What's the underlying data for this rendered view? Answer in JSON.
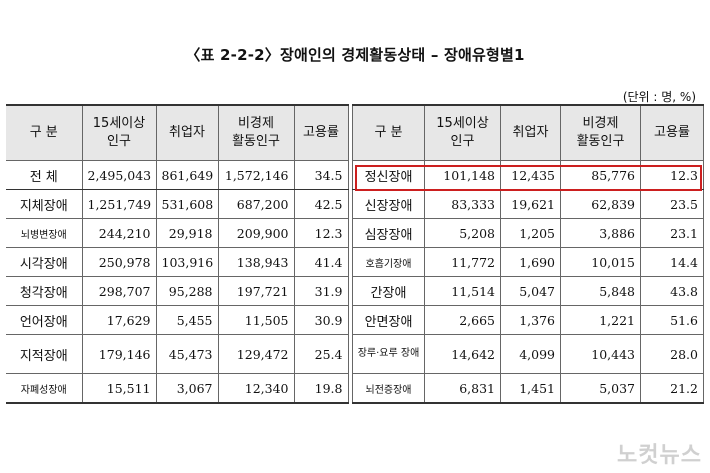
{
  "title": "〈표 2-2-2〉장애인의 경제활동상태 – 장애유형별1",
  "unit": "(단위 : 명, %)",
  "headers": {
    "category": "구 분",
    "pop15_line1": "15세이상",
    "pop15_line2": "인구",
    "employed": "취업자",
    "inactive_line1": "비경제",
    "inactive_line2": "활동인구",
    "rate": "고용률"
  },
  "left_rows": [
    {
      "label": "전 체",
      "pop15": "2,495,043",
      "employed": "861,649",
      "inactive": "1,572,146",
      "rate": "34.5"
    },
    {
      "label": "지체장애",
      "pop15": "1,251,749",
      "employed": "531,608",
      "inactive": "687,200",
      "rate": "42.5"
    },
    {
      "label": "뇌병변장애",
      "pop15": "244,210",
      "employed": "29,918",
      "inactive": "209,900",
      "rate": "12.3"
    },
    {
      "label": "시각장애",
      "pop15": "250,978",
      "employed": "103,916",
      "inactive": "138,943",
      "rate": "41.4"
    },
    {
      "label": "청각장애",
      "pop15": "298,707",
      "employed": "95,288",
      "inactive": "197,721",
      "rate": "31.9"
    },
    {
      "label": "언어장애",
      "pop15": "17,629",
      "employed": "5,455",
      "inactive": "11,505",
      "rate": "30.9"
    },
    {
      "label": "지적장애",
      "pop15": "179,146",
      "employed": "45,473",
      "inactive": "129,472",
      "rate": "25.4"
    },
    {
      "label": "자폐성장애",
      "pop15": "15,511",
      "employed": "3,067",
      "inactive": "12,340",
      "rate": "19.8"
    }
  ],
  "right_rows": [
    {
      "label": "정신장애",
      "pop15": "101,148",
      "employed": "12,435",
      "inactive": "85,776",
      "rate": "12.3"
    },
    {
      "label": "신장장애",
      "pop15": "83,333",
      "employed": "19,621",
      "inactive": "62,839",
      "rate": "23.5"
    },
    {
      "label": "심장장애",
      "pop15": "5,208",
      "employed": "1,205",
      "inactive": "3,886",
      "rate": "23.1"
    },
    {
      "label": "호흡기장애",
      "pop15": "11,772",
      "employed": "1,690",
      "inactive": "10,015",
      "rate": "14.4"
    },
    {
      "label": "간장애",
      "pop15": "11,514",
      "employed": "5,047",
      "inactive": "5,848",
      "rate": "43.8"
    },
    {
      "label": "안면장애",
      "pop15": "2,665",
      "employed": "1,376",
      "inactive": "1,221",
      "rate": "51.6"
    },
    {
      "label": "장루·요루 장애",
      "pop15": "14,642",
      "employed": "4,099",
      "inactive": "10,443",
      "rate": "28.0"
    },
    {
      "label": "뇌전증장애",
      "pop15": "6,831",
      "employed": "1,451",
      "inactive": "5,037",
      "rate": "21.2"
    }
  ],
  "watermark": "노컷뉴스",
  "colors": {
    "header_bg": "#e7e7e7",
    "highlight": "#cc1f1f"
  }
}
